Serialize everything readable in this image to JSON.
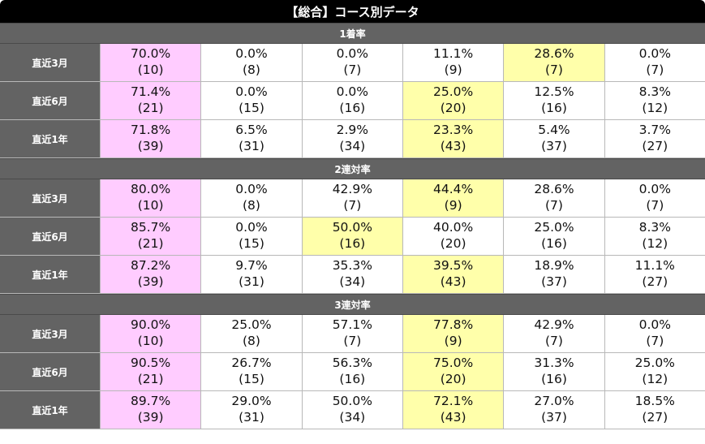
{
  "title": "【総合】コース別データ",
  "colors": {
    "pink": "#ffccff",
    "yellow": "#ffffaa",
    "header": "#636363",
    "title_bg": "#000000"
  },
  "sections": [
    {
      "title": "1着率",
      "rows": [
        {
          "label": "直近3月",
          "cells": [
            {
              "pct": "70.0%",
              "n": "(10)",
              "hl": "pink"
            },
            {
              "pct": "0.0%",
              "n": "(8)",
              "hl": ""
            },
            {
              "pct": "0.0%",
              "n": "(7)",
              "hl": ""
            },
            {
              "pct": "11.1%",
              "n": "(9)",
              "hl": ""
            },
            {
              "pct": "28.6%",
              "n": "(7)",
              "hl": "yellow"
            },
            {
              "pct": "0.0%",
              "n": "(7)",
              "hl": ""
            }
          ]
        },
        {
          "label": "直近6月",
          "cells": [
            {
              "pct": "71.4%",
              "n": "(21)",
              "hl": "pink"
            },
            {
              "pct": "0.0%",
              "n": "(15)",
              "hl": ""
            },
            {
              "pct": "0.0%",
              "n": "(16)",
              "hl": ""
            },
            {
              "pct": "25.0%",
              "n": "(20)",
              "hl": "yellow"
            },
            {
              "pct": "12.5%",
              "n": "(16)",
              "hl": ""
            },
            {
              "pct": "8.3%",
              "n": "(12)",
              "hl": ""
            }
          ]
        },
        {
          "label": "直近1年",
          "cells": [
            {
              "pct": "71.8%",
              "n": "(39)",
              "hl": "pink"
            },
            {
              "pct": "6.5%",
              "n": "(31)",
              "hl": ""
            },
            {
              "pct": "2.9%",
              "n": "(34)",
              "hl": ""
            },
            {
              "pct": "23.3%",
              "n": "(43)",
              "hl": "yellow"
            },
            {
              "pct": "5.4%",
              "n": "(37)",
              "hl": ""
            },
            {
              "pct": "3.7%",
              "n": "(27)",
              "hl": ""
            }
          ]
        }
      ]
    },
    {
      "title": "2連対率",
      "rows": [
        {
          "label": "直近3月",
          "cells": [
            {
              "pct": "80.0%",
              "n": "(10)",
              "hl": "pink"
            },
            {
              "pct": "0.0%",
              "n": "(8)",
              "hl": ""
            },
            {
              "pct": "42.9%",
              "n": "(7)",
              "hl": ""
            },
            {
              "pct": "44.4%",
              "n": "(9)",
              "hl": "yellow"
            },
            {
              "pct": "28.6%",
              "n": "(7)",
              "hl": ""
            },
            {
              "pct": "0.0%",
              "n": "(7)",
              "hl": ""
            }
          ]
        },
        {
          "label": "直近6月",
          "cells": [
            {
              "pct": "85.7%",
              "n": "(21)",
              "hl": "pink"
            },
            {
              "pct": "0.0%",
              "n": "(15)",
              "hl": ""
            },
            {
              "pct": "50.0%",
              "n": "(16)",
              "hl": "yellow"
            },
            {
              "pct": "40.0%",
              "n": "(20)",
              "hl": ""
            },
            {
              "pct": "25.0%",
              "n": "(16)",
              "hl": ""
            },
            {
              "pct": "8.3%",
              "n": "(12)",
              "hl": ""
            }
          ]
        },
        {
          "label": "直近1年",
          "cells": [
            {
              "pct": "87.2%",
              "n": "(39)",
              "hl": "pink"
            },
            {
              "pct": "9.7%",
              "n": "(31)",
              "hl": ""
            },
            {
              "pct": "35.3%",
              "n": "(34)",
              "hl": ""
            },
            {
              "pct": "39.5%",
              "n": "(43)",
              "hl": "yellow"
            },
            {
              "pct": "18.9%",
              "n": "(37)",
              "hl": ""
            },
            {
              "pct": "11.1%",
              "n": "(27)",
              "hl": ""
            }
          ]
        }
      ]
    },
    {
      "title": "3連対率",
      "rows": [
        {
          "label": "直近3月",
          "cells": [
            {
              "pct": "90.0%",
              "n": "(10)",
              "hl": "pink"
            },
            {
              "pct": "25.0%",
              "n": "(8)",
              "hl": ""
            },
            {
              "pct": "57.1%",
              "n": "(7)",
              "hl": ""
            },
            {
              "pct": "77.8%",
              "n": "(9)",
              "hl": "yellow"
            },
            {
              "pct": "42.9%",
              "n": "(7)",
              "hl": ""
            },
            {
              "pct": "0.0%",
              "n": "(7)",
              "hl": ""
            }
          ]
        },
        {
          "label": "直近6月",
          "cells": [
            {
              "pct": "90.5%",
              "n": "(21)",
              "hl": "pink"
            },
            {
              "pct": "26.7%",
              "n": "(15)",
              "hl": ""
            },
            {
              "pct": "56.3%",
              "n": "(16)",
              "hl": ""
            },
            {
              "pct": "75.0%",
              "n": "(20)",
              "hl": "yellow"
            },
            {
              "pct": "31.3%",
              "n": "(16)",
              "hl": ""
            },
            {
              "pct": "25.0%",
              "n": "(12)",
              "hl": ""
            }
          ]
        },
        {
          "label": "直近1年",
          "cells": [
            {
              "pct": "89.7%",
              "n": "(39)",
              "hl": "pink"
            },
            {
              "pct": "29.0%",
              "n": "(31)",
              "hl": ""
            },
            {
              "pct": "50.0%",
              "n": "(34)",
              "hl": ""
            },
            {
              "pct": "72.1%",
              "n": "(43)",
              "hl": "yellow"
            },
            {
              "pct": "27.0%",
              "n": "(37)",
              "hl": ""
            },
            {
              "pct": "18.5%",
              "n": "(27)",
              "hl": ""
            }
          ]
        }
      ]
    }
  ]
}
